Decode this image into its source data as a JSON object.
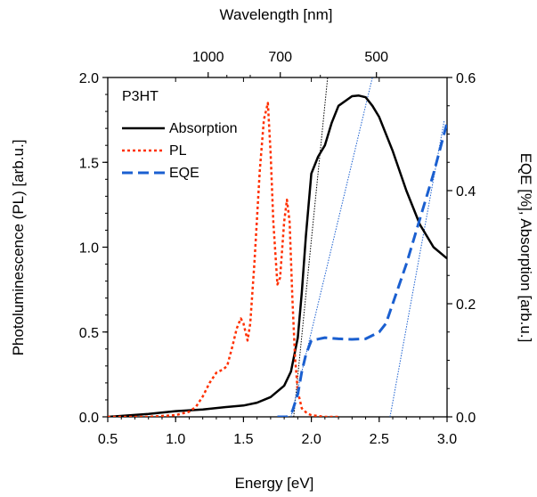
{
  "chart_data": {
    "type": "line",
    "top_axis_label": "Wavelength  [nm]",
    "xlabel": "Energy  [eV]",
    "ylabel_left": "Photoluminescence (PL)  [arb.u.]",
    "ylabel_right": "EQE  [%],  Absorption  [arb.u.]",
    "xlim": [
      0.5,
      3.0
    ],
    "ylim_left": [
      0.0,
      2.0
    ],
    "ylim_right": [
      0.0,
      0.6
    ],
    "x_ticks": [
      "0.5",
      "1.0",
      "1.5",
      "2.0",
      "2.5",
      "3.0"
    ],
    "x_tick_values": [
      0.5,
      1.0,
      1.5,
      2.0,
      2.5,
      3.0
    ],
    "y_left_ticks": [
      "0.0",
      "0.5",
      "1.0",
      "1.5",
      "2.0"
    ],
    "y_left_tick_values": [
      0.0,
      0.5,
      1.0,
      1.5,
      2.0
    ],
    "y_right_ticks": [
      "0.0",
      "0.2",
      "0.4",
      "0.6"
    ],
    "y_right_tick_values": [
      0.0,
      0.2,
      0.4,
      0.6
    ],
    "top_ticks": [
      "1000",
      "700",
      "500"
    ],
    "top_tick_values_nm": [
      1000,
      700,
      500
    ],
    "legend_title": "P3HT",
    "legend_position": "top-left",
    "grid": false,
    "series": [
      {
        "name": "Absorption",
        "axis": "right",
        "color": "#000000",
        "style": "solid",
        "x": [
          0.5,
          0.8,
          1.0,
          1.2,
          1.4,
          1.5,
          1.6,
          1.7,
          1.8,
          1.85,
          1.9,
          1.93,
          1.96,
          2.0,
          2.05,
          2.1,
          2.15,
          2.2,
          2.3,
          2.35,
          2.4,
          2.45,
          2.5,
          2.6,
          2.7,
          2.8,
          2.9,
          3.0
        ],
        "values": [
          0.0,
          0.005,
          0.01,
          0.013,
          0.018,
          0.02,
          0.025,
          0.035,
          0.055,
          0.08,
          0.14,
          0.22,
          0.32,
          0.43,
          0.46,
          0.48,
          0.52,
          0.55,
          0.567,
          0.568,
          0.565,
          0.55,
          0.53,
          0.47,
          0.4,
          0.34,
          0.3,
          0.28
        ]
      },
      {
        "name": "PL",
        "axis": "left",
        "color": "#ff3000",
        "style": "dotted",
        "x": [
          0.5,
          0.6,
          0.8,
          1.0,
          1.1,
          1.15,
          1.2,
          1.25,
          1.3,
          1.35,
          1.38,
          1.42,
          1.45,
          1.48,
          1.5,
          1.53,
          1.55,
          1.58,
          1.62,
          1.65,
          1.68,
          1.7,
          1.72,
          1.75,
          1.77,
          1.8,
          1.82,
          1.84,
          1.86,
          1.88,
          1.9,
          1.93,
          1.97,
          2.0,
          2.1,
          2.2
        ],
        "values": [
          0.0,
          0.0,
          0.0,
          0.01,
          0.03,
          0.06,
          0.12,
          0.2,
          0.26,
          0.28,
          0.3,
          0.42,
          0.52,
          0.58,
          0.55,
          0.45,
          0.55,
          0.9,
          1.45,
          1.75,
          1.85,
          1.55,
          1.15,
          0.78,
          0.82,
          1.15,
          1.28,
          1.15,
          0.7,
          0.35,
          0.15,
          0.05,
          0.02,
          0.01,
          0.0,
          0.0
        ]
      },
      {
        "name": "EQE",
        "axis": "right",
        "color": "#1a5fd0",
        "style": "dashed",
        "x": [
          1.75,
          1.82,
          1.86,
          1.9,
          1.93,
          1.96,
          2.0,
          2.1,
          2.2,
          2.3,
          2.4,
          2.5,
          2.55,
          2.6,
          2.7,
          2.8,
          2.9,
          3.0
        ],
        "values": [
          0.0,
          0.0,
          0.01,
          0.04,
          0.08,
          0.11,
          0.135,
          0.14,
          0.138,
          0.137,
          0.138,
          0.15,
          0.165,
          0.2,
          0.27,
          0.35,
          0.43,
          0.52
        ]
      }
    ],
    "guide_lines": [
      {
        "color": "#000000",
        "style": "fine-dotted",
        "from": [
          1.87,
          0.0
        ],
        "to": [
          2.12,
          2.0
        ],
        "axis": "left"
      },
      {
        "color": "#1a5fd0",
        "style": "fine-dotted",
        "from": [
          1.85,
          0.0
        ],
        "to": [
          2.45,
          2.0
        ],
        "axis": "left"
      },
      {
        "color": "#1a5fd0",
        "style": "fine-dotted",
        "from": [
          2.58,
          0.0
        ],
        "to": [
          2.98,
          1.75
        ],
        "axis": "left"
      }
    ]
  }
}
